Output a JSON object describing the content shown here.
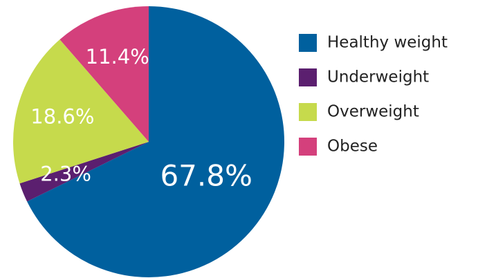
{
  "chart_data": {
    "type": "pie",
    "categories": [
      "Healthy weight",
      "Underweight",
      "Overweight",
      "Obese"
    ],
    "values": [
      67.8,
      2.3,
      18.6,
      11.4
    ],
    "value_labels": [
      "67.8%",
      "2.3%",
      "18.6%",
      "11.4%"
    ],
    "colors": [
      "#00609e",
      "#5b1f6f",
      "#c6da4c",
      "#d4407c"
    ],
    "legend": "right"
  }
}
